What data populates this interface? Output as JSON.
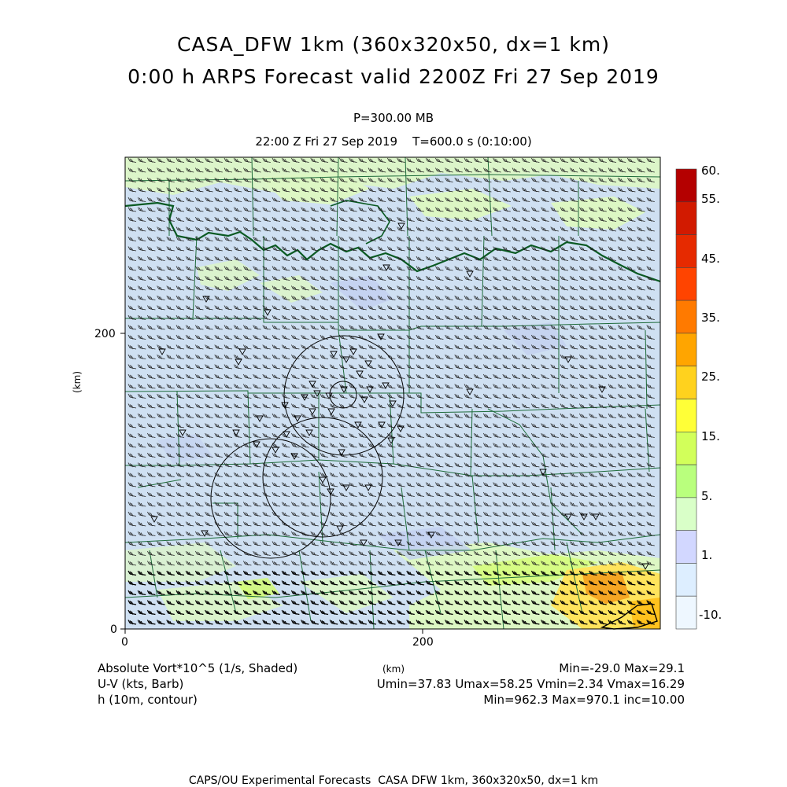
{
  "header": {
    "title_line1": "CASA_DFW 1km (360x320x50, dx=1 km)",
    "title_line2": "0:00 h ARPS Forecast valid 2200Z Fri 27 Sep 2019",
    "level": "P=300.00 MB",
    "time_line": "22:00 Z Fri 27 Sep 2019    T=600.0 s (0:10:00)"
  },
  "axes": {
    "x_ticks": [
      "0",
      "200"
    ],
    "y_ticks": [
      "0",
      "200"
    ],
    "x_label": "(km)",
    "y_label": "(km)"
  },
  "colorbar": {
    "labels": [
      "60.",
      "55.",
      "45.",
      "35.",
      "25.",
      "15.",
      "5.",
      "1.",
      "-10."
    ],
    "colors": [
      "#b40000",
      "#d21a00",
      "#e62a00",
      "#ff4400",
      "#ff7a00",
      "#ffa500",
      "#ffd21e",
      "#ffff37",
      "#d2ff5a",
      "#b9ff7d",
      "#d9ffc8",
      "#d2d7ff",
      "#ddeeff",
      "#eef7ff"
    ]
  },
  "legend": {
    "left": [
      "Absolute Vort*10^5 (1/s, Shaded)",
      "U-V (kts, Barb)",
      "h (10m, contour)"
    ],
    "right": [
      "Min=-29.0 Max=29.1",
      "Umin=37.83 Umax=58.25 Vmin=2.34 Vmax=16.29",
      "Min=962.3 Max=970.1 inc=10.00"
    ]
  },
  "footer": "CAPS/OU Experimental Forecasts  CASA DFW 1km, 360x320x50, dx=1 km",
  "colors": {
    "background_field": "#cfe0f2",
    "weak_vort": "#ddf7c4",
    "strong_vort": "#f5a623",
    "county_lines": "#1e6b3a",
    "state_border": "#0a5a22",
    "radar_rings": "#000000"
  }
}
